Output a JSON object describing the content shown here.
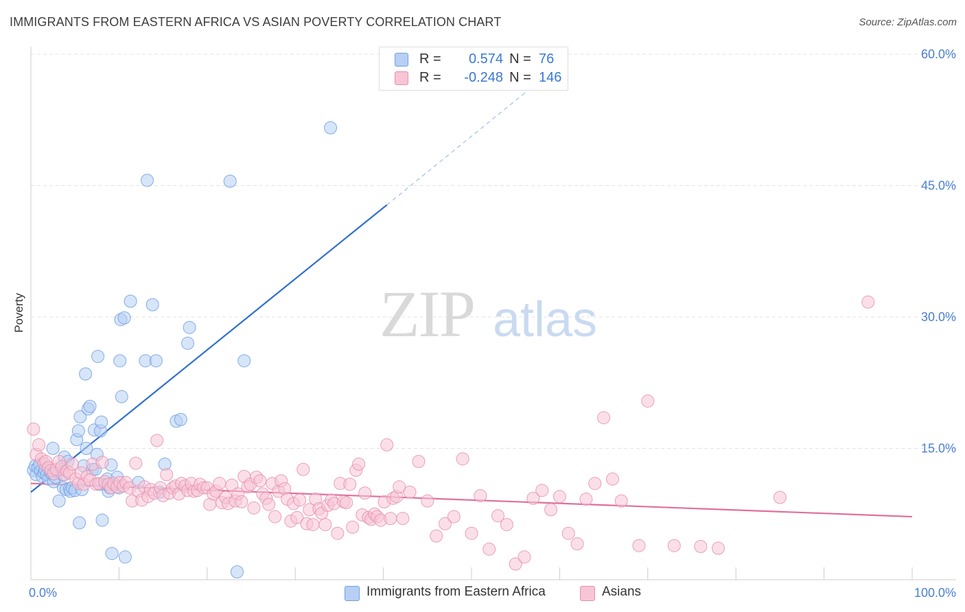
{
  "title": "IMMIGRANTS FROM EASTERN AFRICA VS ASIAN POVERTY CORRELATION CHART",
  "source": "Source: ZipAtlas.com",
  "watermark": {
    "zip": "ZIP",
    "atlas": "atlas"
  },
  "legend_top": {
    "r_label": "R =",
    "n_label": "N =",
    "rows": [
      {
        "r": "0.574",
        "n": "76",
        "fill": "#b7cff4",
        "stroke": "#6f9fe0"
      },
      {
        "r": "-0.248",
        "n": "146",
        "fill": "#f7c5d6",
        "stroke": "#e58fae"
      }
    ]
  },
  "legend_bottom": [
    {
      "label": "Immigrants from Eastern Africa",
      "fill": "#b7cff4",
      "stroke": "#6f9fe0"
    },
    {
      "label": "Asians",
      "fill": "#f7c5d6",
      "stroke": "#e58fae"
    }
  ],
  "chart_data": {
    "type": "scatter",
    "ylabel": "Poverty",
    "xlabel": "",
    "xlim": [
      0,
      100
    ],
    "ylim": [
      0,
      62
    ],
    "x_tick_labels": [
      {
        "value": 0,
        "label": "0.0%"
      },
      {
        "value": 100,
        "label": "100.0%"
      }
    ],
    "y_tick_labels": [
      {
        "value": 15,
        "label": "15.0%"
      },
      {
        "value": 30,
        "label": "30.0%"
      },
      {
        "value": 45,
        "label": "45.0%"
      },
      {
        "value": 60,
        "label": "60.0%"
      }
    ],
    "x_minor_ticks": [
      0,
      10,
      20,
      30,
      40,
      50,
      60,
      70,
      80,
      90,
      100
    ],
    "grid": true,
    "series": [
      {
        "name": "Immigrants from Eastern Africa",
        "color": "#6f9fe0",
        "fill": "#b7cff4",
        "points": [
          [
            0.3,
            12.5
          ],
          [
            0.5,
            13.0
          ],
          [
            0.6,
            12.0
          ],
          [
            0.8,
            12.8
          ],
          [
            1.0,
            13.2
          ],
          [
            1.1,
            12.4
          ],
          [
            1.3,
            11.8
          ],
          [
            1.5,
            12.2
          ],
          [
            1.6,
            12.6
          ],
          [
            1.8,
            12.0
          ],
          [
            2.0,
            11.5
          ],
          [
            2.2,
            12.3
          ],
          [
            2.4,
            12.1
          ],
          [
            2.5,
            15.0
          ],
          [
            2.6,
            11.2
          ],
          [
            2.8,
            11.7
          ],
          [
            3.0,
            12.4
          ],
          [
            3.2,
            9.0
          ],
          [
            3.4,
            12.6
          ],
          [
            3.6,
            12.0
          ],
          [
            3.7,
            10.5
          ],
          [
            3.8,
            14.0
          ],
          [
            4.0,
            10.3
          ],
          [
            4.2,
            13.5
          ],
          [
            4.4,
            10.4
          ],
          [
            4.5,
            10.1
          ],
          [
            4.7,
            10.5
          ],
          [
            5.0,
            10.2
          ],
          [
            5.2,
            16.0
          ],
          [
            5.4,
            17.0
          ],
          [
            5.5,
            6.5
          ],
          [
            5.6,
            18.6
          ],
          [
            5.8,
            10.3
          ],
          [
            6.0,
            13.0
          ],
          [
            6.2,
            23.5
          ],
          [
            6.3,
            15.0
          ],
          [
            6.5,
            19.5
          ],
          [
            6.7,
            19.8
          ],
          [
            7.0,
            12.6
          ],
          [
            7.2,
            17.1
          ],
          [
            7.3,
            12.6
          ],
          [
            7.5,
            14.3
          ],
          [
            7.6,
            25.5
          ],
          [
            7.8,
            10.9
          ],
          [
            7.9,
            17.0
          ],
          [
            8.0,
            18.0
          ],
          [
            8.1,
            6.8
          ],
          [
            8.4,
            10.9
          ],
          [
            8.7,
            11.5
          ],
          [
            8.8,
            10.1
          ],
          [
            9.0,
            10.5
          ],
          [
            9.1,
            13.1
          ],
          [
            9.2,
            3.0
          ],
          [
            9.5,
            10.8
          ],
          [
            9.8,
            11.7
          ],
          [
            10.0,
            10.5
          ],
          [
            10.1,
            25.0
          ],
          [
            10.2,
            29.7
          ],
          [
            10.3,
            20.9
          ],
          [
            10.6,
            29.9
          ],
          [
            10.7,
            2.6
          ],
          [
            11.3,
            31.8
          ],
          [
            12.2,
            11.1
          ],
          [
            13.0,
            25.0
          ],
          [
            13.2,
            45.6
          ],
          [
            13.8,
            31.4
          ],
          [
            14.2,
            25.0
          ],
          [
            14.6,
            10.0
          ],
          [
            15.2,
            13.2
          ],
          [
            16.5,
            18.1
          ],
          [
            17.0,
            18.3
          ],
          [
            17.8,
            27.0
          ],
          [
            18.0,
            28.8
          ],
          [
            22.6,
            45.5
          ],
          [
            23.4,
            0.9
          ],
          [
            24.2,
            25.0
          ],
          [
            34.0,
            51.6
          ]
        ]
      },
      {
        "name": "Asians",
        "color": "#e58fae",
        "fill": "#f7c5d6",
        "points": [
          [
            0.3,
            17.2
          ],
          [
            0.6,
            14.3
          ],
          [
            0.9,
            15.4
          ],
          [
            1.2,
            13.8
          ],
          [
            1.5,
            13.3
          ],
          [
            1.7,
            13.5
          ],
          [
            2.0,
            12.8
          ],
          [
            2.3,
            12.5
          ],
          [
            2.6,
            12.1
          ],
          [
            2.9,
            12.6
          ],
          [
            3.2,
            13.5
          ],
          [
            3.5,
            12.9
          ],
          [
            3.8,
            12.0
          ],
          [
            4.1,
            12.4
          ],
          [
            4.4,
            12.2
          ],
          [
            4.7,
            13.2
          ],
          [
            5.1,
            11.5
          ],
          [
            5.4,
            11.0
          ],
          [
            5.7,
            12.2
          ],
          [
            6.0,
            10.9
          ],
          [
            6.4,
            11.8
          ],
          [
            6.7,
            11.4
          ],
          [
            7.0,
            13.2
          ],
          [
            7.4,
            10.9
          ],
          [
            7.7,
            11.0
          ],
          [
            8.1,
            13.4
          ],
          [
            8.4,
            11.2
          ],
          [
            8.8,
            10.9
          ],
          [
            9.1,
            10.5
          ],
          [
            9.4,
            11.0
          ],
          [
            9.8,
            10.6
          ],
          [
            10.1,
            11.1
          ],
          [
            10.5,
            10.7
          ],
          [
            10.8,
            11.1
          ],
          [
            11.2,
            10.5
          ],
          [
            11.5,
            9.0
          ],
          [
            11.9,
            13.3
          ],
          [
            12.2,
            10.1
          ],
          [
            12.6,
            9.1
          ],
          [
            12.9,
            10.6
          ],
          [
            13.3,
            9.5
          ],
          [
            13.6,
            10.3
          ],
          [
            14.0,
            9.9
          ],
          [
            14.3,
            15.9
          ],
          [
            14.7,
            10.5
          ],
          [
            15.0,
            9.6
          ],
          [
            15.4,
            12.0
          ],
          [
            15.7,
            9.9
          ],
          [
            16.1,
            10.5
          ],
          [
            16.4,
            10.7
          ],
          [
            16.8,
            9.8
          ],
          [
            17.1,
            11.0
          ],
          [
            17.5,
            10.7
          ],
          [
            17.8,
            10.2
          ],
          [
            18.2,
            11.0
          ],
          [
            18.5,
            10.1
          ],
          [
            18.9,
            10.2
          ],
          [
            19.2,
            10.9
          ],
          [
            19.6,
            10.5
          ],
          [
            20.0,
            10.5
          ],
          [
            20.3,
            8.6
          ],
          [
            20.7,
            9.8
          ],
          [
            21.0,
            10.1
          ],
          [
            21.4,
            11.0
          ],
          [
            21.7,
            8.8
          ],
          [
            22.1,
            9.4
          ],
          [
            22.4,
            8.7
          ],
          [
            22.8,
            10.8
          ],
          [
            23.2,
            9.0
          ],
          [
            23.5,
            9.8
          ],
          [
            23.9,
            8.9
          ],
          [
            24.2,
            11.8
          ],
          [
            24.6,
            10.6
          ],
          [
            24.9,
            10.9
          ],
          [
            25.3,
            8.2
          ],
          [
            25.6,
            11.7
          ],
          [
            26.0,
            11.3
          ],
          [
            26.3,
            9.8
          ],
          [
            26.7,
            9.3
          ],
          [
            27.0,
            8.6
          ],
          [
            27.4,
            11.0
          ],
          [
            27.7,
            7.2
          ],
          [
            28.1,
            10.1
          ],
          [
            28.4,
            11.3
          ],
          [
            28.8,
            10.4
          ],
          [
            29.1,
            9.2
          ],
          [
            29.5,
            6.7
          ],
          [
            29.8,
            8.7
          ],
          [
            30.2,
            7.1
          ],
          [
            30.5,
            9.1
          ],
          [
            30.9,
            12.6
          ],
          [
            31.3,
            6.4
          ],
          [
            31.6,
            8.0
          ],
          [
            32.0,
            6.3
          ],
          [
            32.3,
            9.2
          ],
          [
            32.7,
            8.1
          ],
          [
            33.0,
            7.6
          ],
          [
            33.4,
            6.3
          ],
          [
            33.7,
            8.5
          ],
          [
            34.1,
            9.1
          ],
          [
            34.4,
            8.7
          ],
          [
            34.8,
            5.3
          ],
          [
            35.1,
            11.0
          ],
          [
            35.5,
            8.9
          ],
          [
            35.8,
            8.8
          ],
          [
            36.2,
            10.9
          ],
          [
            36.5,
            6.0
          ],
          [
            36.9,
            12.5
          ],
          [
            37.2,
            13.2
          ],
          [
            37.6,
            7.4
          ],
          [
            37.9,
            9.9
          ],
          [
            38.3,
            7.1
          ],
          [
            38.6,
            6.9
          ],
          [
            39.0,
            7.5
          ],
          [
            39.3,
            7.2
          ],
          [
            39.7,
            6.8
          ],
          [
            40.1,
            8.9
          ],
          [
            40.4,
            15.4
          ],
          [
            40.8,
            7.0
          ],
          [
            41.1,
            9.3
          ],
          [
            41.5,
            9.5
          ],
          [
            41.8,
            10.6
          ],
          [
            42.2,
            7.0
          ],
          [
            43.0,
            10.0
          ],
          [
            44.0,
            13.5
          ],
          [
            45.0,
            9.0
          ],
          [
            46.0,
            5.0
          ],
          [
            47.0,
            6.4
          ],
          [
            48.0,
            7.2
          ],
          [
            49.0,
            13.8
          ],
          [
            50.0,
            5.3
          ],
          [
            51.0,
            9.6
          ],
          [
            52.0,
            3.5
          ],
          [
            53.0,
            7.3
          ],
          [
            54.0,
            6.3
          ],
          [
            55.0,
            1.8
          ],
          [
            56.0,
            2.6
          ],
          [
            57.0,
            9.3
          ],
          [
            58.0,
            10.2
          ],
          [
            59.0,
            8.0
          ],
          [
            60.0,
            9.5
          ],
          [
            61.0,
            5.3
          ],
          [
            62.0,
            4.1
          ],
          [
            63.0,
            9.2
          ],
          [
            64.0,
            11.0
          ],
          [
            65.0,
            18.5
          ],
          [
            66.0,
            11.5
          ],
          [
            67.0,
            9.0
          ],
          [
            69.0,
            3.9
          ],
          [
            70.0,
            20.4
          ],
          [
            73.0,
            3.9
          ],
          [
            76.0,
            3.8
          ],
          [
            78.0,
            3.6
          ],
          [
            85.0,
            9.4
          ],
          [
            95.0,
            31.7
          ]
        ]
      }
    ],
    "trendlines": [
      {
        "series": "Immigrants from Eastern Africa",
        "color": "#2f6fcf",
        "x": [
          0,
          40.4
        ],
        "y": [
          10.0,
          42.8
        ],
        "dashed_extension_to": [
          60.0,
          58.8
        ]
      },
      {
        "series": "Asians",
        "color": "#e06f9c",
        "x": [
          0,
          100
        ],
        "y": [
          11.0,
          7.2
        ]
      }
    ]
  }
}
